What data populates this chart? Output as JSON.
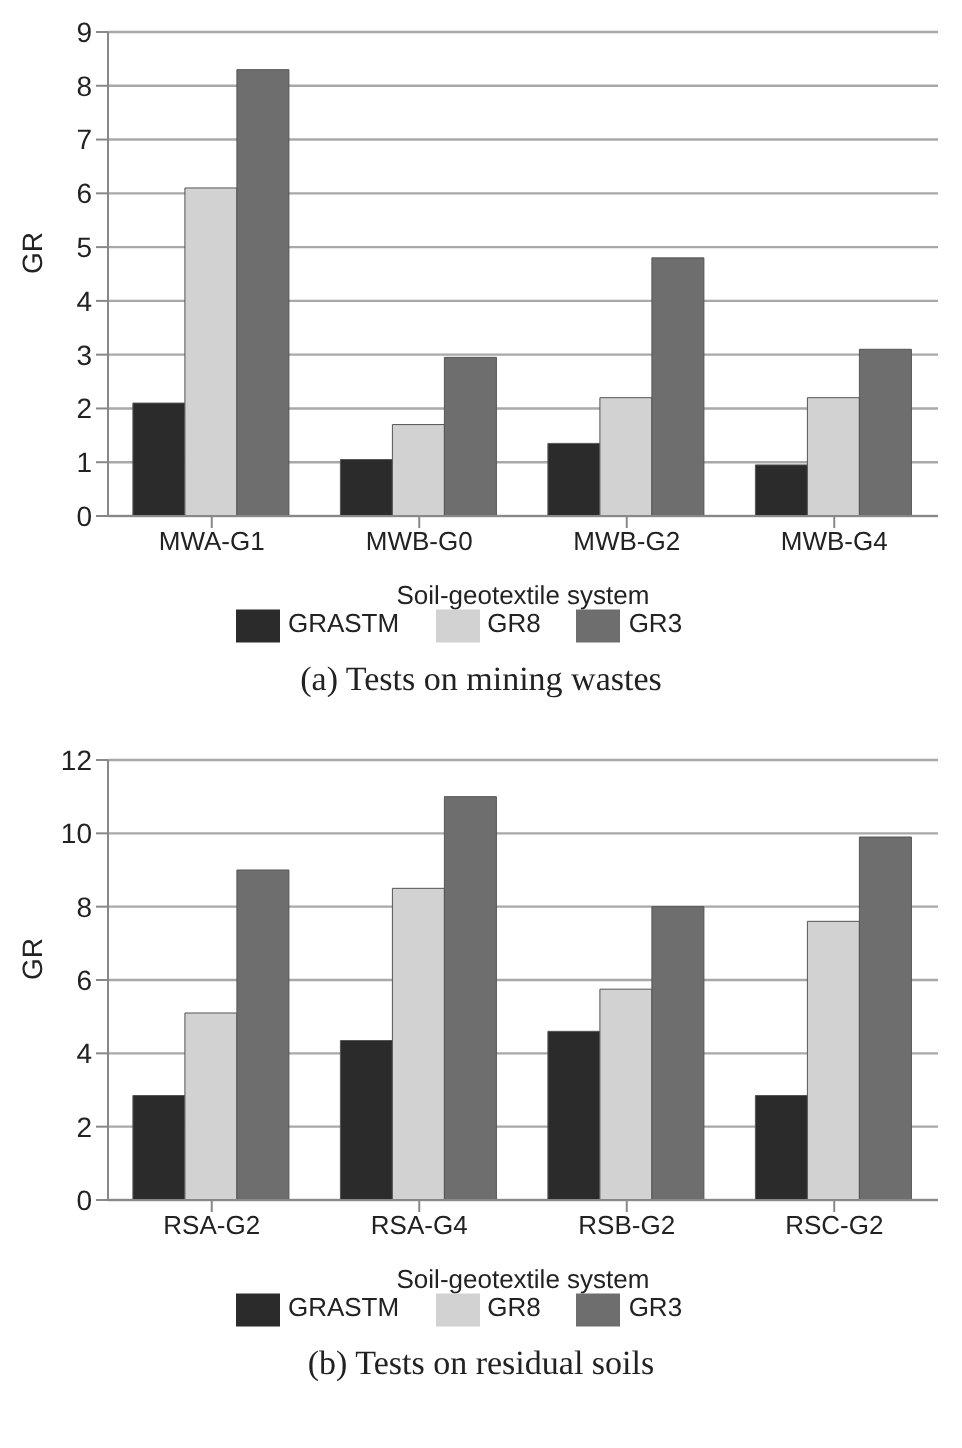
{
  "chart_data": [
    {
      "type": "bar",
      "title": "(a) Tests on mining wastes",
      "xlabel": "Soil-geotextile system",
      "ylabel": "GR",
      "categories": [
        "MWA-G1",
        "MWB-G0",
        "MWB-G2",
        "MWB-G4"
      ],
      "series": [
        {
          "name": "GRASTM",
          "color": "#2b2b2b",
          "values": [
            2.1,
            1.05,
            1.35,
            0.95
          ]
        },
        {
          "name": "GR8",
          "color": "#d2d2d2",
          "values": [
            6.1,
            1.7,
            2.2,
            2.2
          ]
        },
        {
          "name": "GR3",
          "color": "#6e6e6e",
          "values": [
            8.3,
            2.95,
            4.8,
            3.1
          ]
        }
      ],
      "ylim": [
        0,
        9
      ],
      "yticks": [
        0,
        1,
        2,
        3,
        4,
        5,
        6,
        7,
        8,
        9
      ],
      "grid": "y",
      "legend": "bottom"
    },
    {
      "type": "bar",
      "title": "(b) Tests on residual soils",
      "xlabel": "Soil-geotextile system",
      "ylabel": "GR",
      "categories": [
        "RSA-G2",
        "RSA-G4",
        "RSB-G2",
        "RSC-G2"
      ],
      "series": [
        {
          "name": "GRASTM",
          "color": "#2b2b2b",
          "values": [
            2.85,
            4.35,
            4.6,
            2.85
          ]
        },
        {
          "name": "GR8",
          "color": "#d2d2d2",
          "values": [
            5.1,
            8.5,
            5.75,
            7.6
          ]
        },
        {
          "name": "GR3",
          "color": "#6e6e6e",
          "values": [
            9.0,
            11.0,
            8.0,
            9.9
          ]
        }
      ],
      "ylim": [
        0,
        12
      ],
      "yticks": [
        0,
        2,
        4,
        6,
        8,
        10,
        12
      ],
      "grid": "y",
      "legend": "bottom"
    }
  ]
}
